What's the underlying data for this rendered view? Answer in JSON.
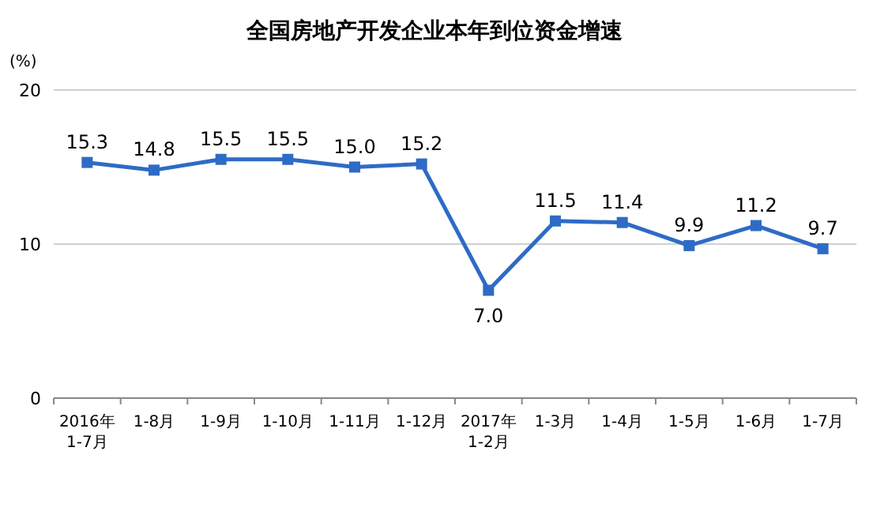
{
  "chart_data": {
    "type": "line",
    "title": "全国房地产开发企业本年到位资金增速",
    "ylabel": "(%)",
    "categories": [
      "2016年\n1-7月",
      "1-8月",
      "1-9月",
      "1-10月",
      "1-11月",
      "1-12月",
      "2017年\n1-2月",
      "1-3月",
      "1-4月",
      "1-5月",
      "1-6月",
      "1-7月"
    ],
    "series": [
      {
        "color": "#2e6bc6",
        "values": [
          15.3,
          14.8,
          15.5,
          15.5,
          15.0,
          15.2,
          7.0,
          11.5,
          11.4,
          9.9,
          11.2,
          9.7
        ],
        "value_labels": [
          "15.3",
          "14.8",
          "15.5",
          "15.5",
          "15.0",
          "15.2",
          "7.0",
          "11.5",
          "11.4",
          "9.9",
          "11.2",
          "9.7"
        ]
      }
    ],
    "ylim": [
      0,
      20
    ],
    "yticks": [
      0,
      10,
      20
    ],
    "grid": "y",
    "marker": "square",
    "line_style": "solid"
  }
}
